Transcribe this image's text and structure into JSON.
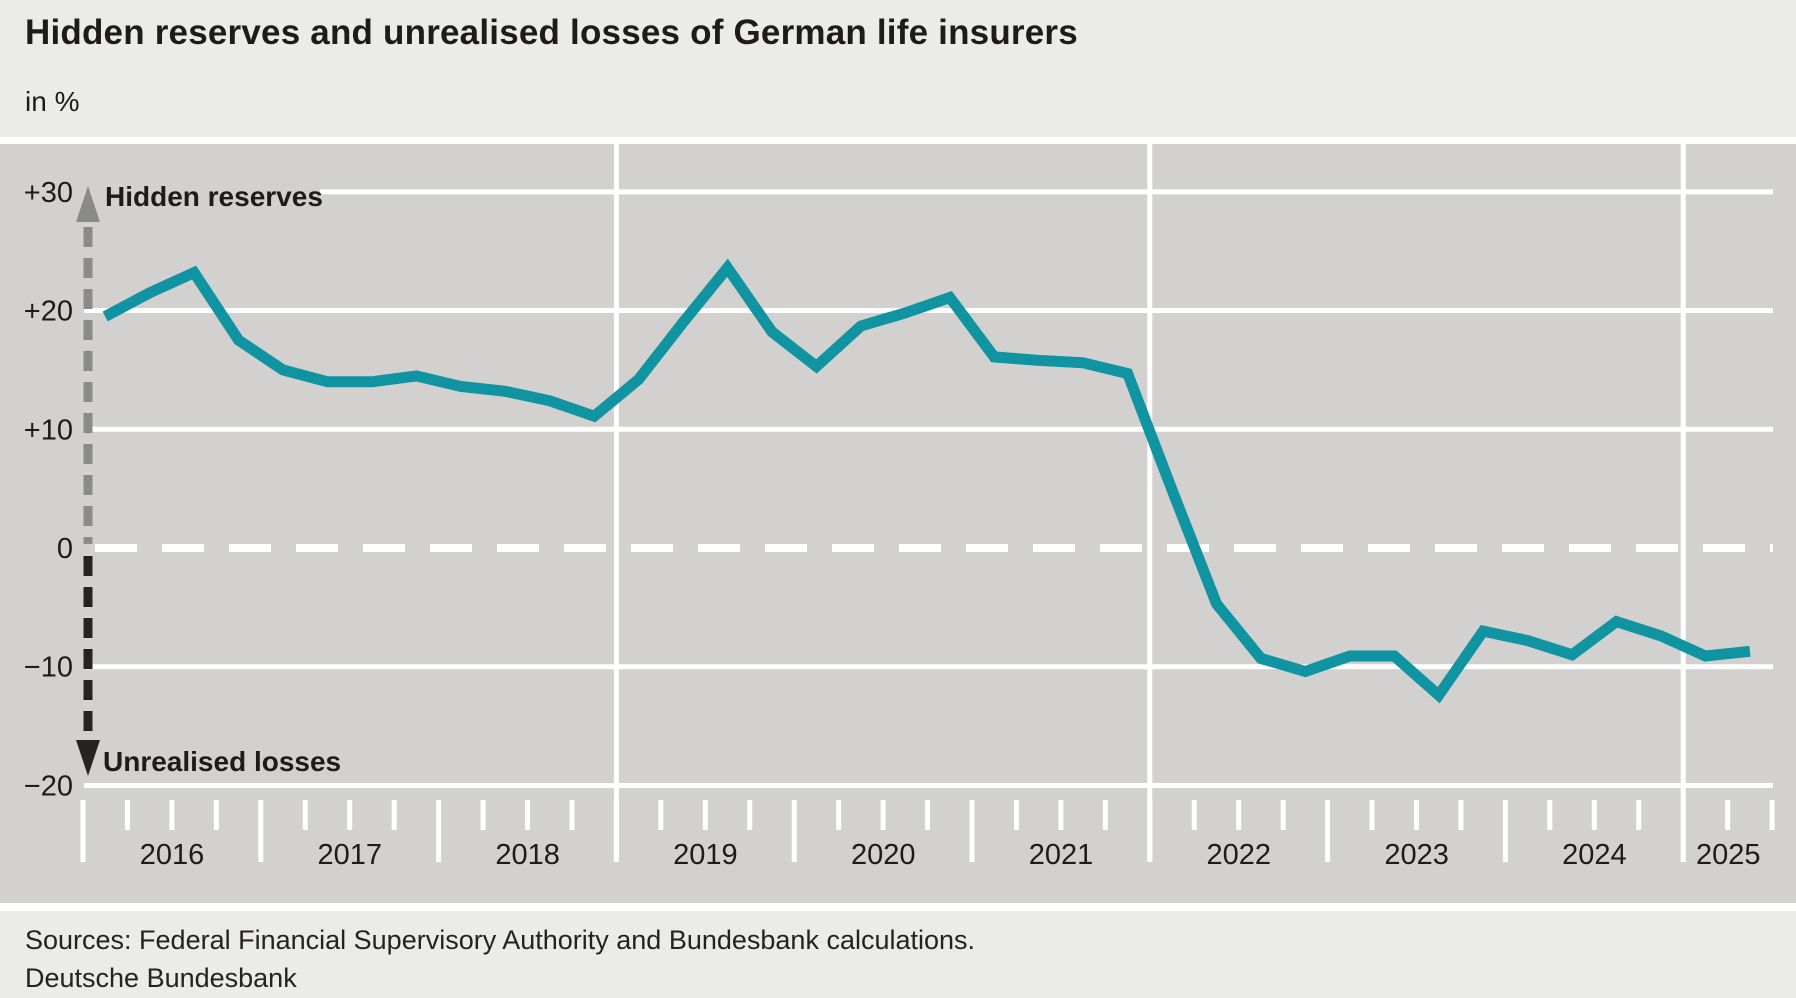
{
  "header": {
    "title": "Hidden reserves and unrealised losses of German life insurers",
    "subtitle": "in %"
  },
  "footer": {
    "sources": "Sources: Federal Financial Supervisory Authority and Bundesbank calculations.",
    "publisher": "Deutsche Bundesbank"
  },
  "colors": {
    "line": "#1094a2",
    "plot_background": "#d2d1cf",
    "panel_background": "#ebebe9",
    "gridline": "#ffffff",
    "arrow_positive": "#8a8a88",
    "arrow_negative": "#25241f",
    "text": "#1d1c1a"
  },
  "chart_data": {
    "type": "line",
    "title": "Hidden reserves and unrealised losses of German life insurers",
    "unit": "in %",
    "frequency": "quarterly",
    "ylim": [
      -20,
      30
    ],
    "grid": "on",
    "zero_line_style": "dashed",
    "y_ticks": [
      {
        "label": "+30",
        "value": 30
      },
      {
        "label": "+20",
        "value": 20
      },
      {
        "label": "+10",
        "value": 10
      },
      {
        "label": "0",
        "value": 0
      },
      {
        "label": "−10",
        "value": -10
      },
      {
        "label": "−20",
        "value": -20
      }
    ],
    "x_years": [
      2016,
      2017,
      2018,
      2019,
      2020,
      2021,
      2022,
      2023,
      2024,
      2025
    ],
    "year_boundary_gridlines": [
      2019,
      2022,
      2025
    ],
    "annotations": {
      "positive": "Hidden reserves",
      "negative": "Unrealised losses"
    },
    "series": [
      {
        "name": "Hidden reserves (+) / unrealised losses (−) of German life insurers",
        "points": [
          {
            "period": "2016 Q1",
            "value": 19.5
          },
          {
            "period": "2016 Q2",
            "value": 21.5
          },
          {
            "period": "2016 Q3",
            "value": 23.2
          },
          {
            "period": "2016 Q4",
            "value": 17.5
          },
          {
            "period": "2017 Q1",
            "value": 15.0
          },
          {
            "period": "2017 Q2",
            "value": 14.0
          },
          {
            "period": "2017 Q3",
            "value": 14.0
          },
          {
            "period": "2017 Q4",
            "value": 14.5
          },
          {
            "period": "2018 Q1",
            "value": 13.6
          },
          {
            "period": "2018 Q2",
            "value": 13.2
          },
          {
            "period": "2018 Q3",
            "value": 12.4
          },
          {
            "period": "2018 Q4",
            "value": 11.1
          },
          {
            "period": "2019 Q1",
            "value": 14.2
          },
          {
            "period": "2019 Q2",
            "value": 19.0
          },
          {
            "period": "2019 Q3",
            "value": 23.6
          },
          {
            "period": "2019 Q4",
            "value": 18.2
          },
          {
            "period": "2020 Q1",
            "value": 15.3
          },
          {
            "period": "2020 Q2",
            "value": 18.7
          },
          {
            "period": "2020 Q3",
            "value": 19.8
          },
          {
            "period": "2020 Q4",
            "value": 21.1
          },
          {
            "period": "2021 Q1",
            "value": 16.1
          },
          {
            "period": "2021 Q2",
            "value": 15.8
          },
          {
            "period": "2021 Q3",
            "value": 15.6
          },
          {
            "period": "2021 Q4",
            "value": 14.7
          },
          {
            "period": "2022 Q1",
            "value": 4.9
          },
          {
            "period": "2022 Q2",
            "value": -4.7
          },
          {
            "period": "2022 Q3",
            "value": -9.3
          },
          {
            "period": "2022 Q4",
            "value": -10.4
          },
          {
            "period": "2023 Q1",
            "value": -9.1
          },
          {
            "period": "2023 Q2",
            "value": -9.1
          },
          {
            "period": "2023 Q3",
            "value": -12.4
          },
          {
            "period": "2023 Q4",
            "value": -7.0
          },
          {
            "period": "2024 Q1",
            "value": -7.8
          },
          {
            "period": "2024 Q2",
            "value": -9.0
          },
          {
            "period": "2024 Q3",
            "value": -6.2
          },
          {
            "period": "2024 Q4",
            "value": -7.4
          },
          {
            "period": "2025 Q1",
            "value": -9.1
          },
          {
            "period": "2025 Q2",
            "value": -8.7
          }
        ]
      }
    ]
  }
}
